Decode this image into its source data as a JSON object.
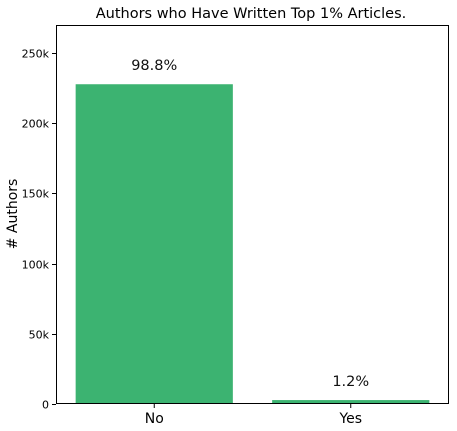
{
  "chart_data": {
    "type": "bar",
    "title": "Authors who Have Written Top 1% Articles.",
    "xlabel": "",
    "ylabel": "# Authors",
    "categories": [
      "No",
      "Yes"
    ],
    "values": [
      227800,
      2800
    ],
    "data_labels": [
      "98.8%",
      "1.2%"
    ],
    "ylim": [
      0,
      270000
    ],
    "yticks": [
      0,
      50000,
      100000,
      150000,
      200000,
      250000
    ],
    "ytick_labels": [
      "0",
      "50k",
      "100k",
      "150k",
      "200k",
      "250k"
    ],
    "bar_color": "#3cb371",
    "grid": false,
    "legend": "none"
  }
}
